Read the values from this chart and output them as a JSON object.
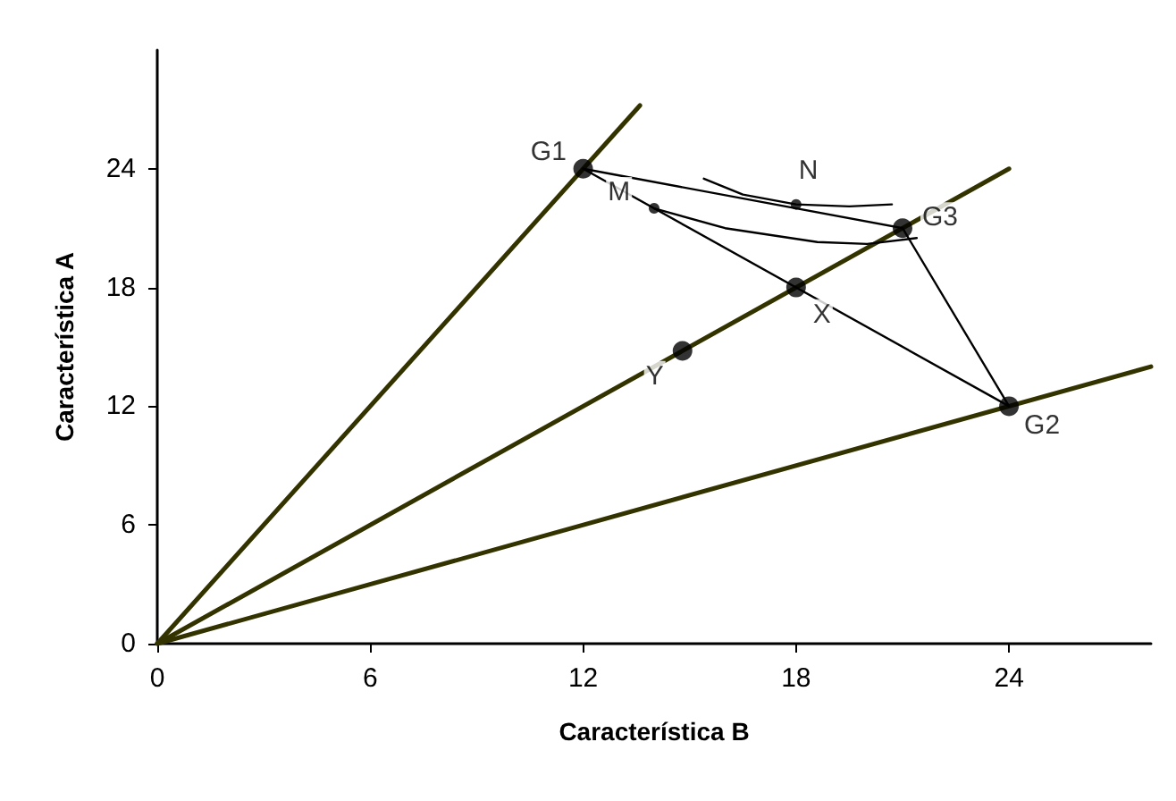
{
  "chart_data": {
    "type": "line",
    "xlabel": "Característica B",
    "ylabel": "Característica A",
    "xlim": [
      0,
      28
    ],
    "ylim": [
      0,
      30
    ],
    "xticks": [
      0,
      6,
      12,
      18,
      24
    ],
    "yticks": [
      0,
      6,
      12,
      18,
      24
    ],
    "grid": false,
    "series": [
      {
        "color": "#333300",
        "x": [
          0,
          13.6
        ],
        "values": [
          0,
          27.2
        ]
      },
      {
        "color": "#333300",
        "x": [
          0,
          24
        ],
        "values": [
          0,
          24
        ]
      },
      {
        "color": "#333300",
        "x": [
          0,
          28
        ],
        "values": [
          0,
          14
        ]
      },
      {
        "color": "#000000",
        "x": [
          12,
          24
        ],
        "values": [
          24,
          12
        ]
      },
      {
        "color": "#000000",
        "x": [
          12,
          21
        ],
        "values": [
          24,
          21
        ]
      },
      {
        "color": "#000000",
        "x": [
          21,
          24
        ],
        "values": [
          21,
          12
        ]
      },
      {
        "color": "#000000",
        "x": [
          15.4,
          16.5,
          18,
          19.5,
          20.7
        ],
        "values": [
          23.5,
          22.7,
          22.2,
          22.1,
          22.2
        ]
      },
      {
        "color": "#000000",
        "x": [
          14,
          16,
          18.6,
          20,
          21.4
        ],
        "values": [
          22,
          21,
          20.3,
          20.2,
          20.5
        ]
      },
      {
        "type": "scatter",
        "color": "#000000",
        "marker": "circle",
        "x": [
          12,
          24,
          21,
          18,
          14.8
        ],
        "values": [
          24,
          12,
          21,
          18,
          14.8
        ]
      },
      {
        "type": "scatter",
        "color": "#000000",
        "marker": "circle",
        "x": [
          14,
          18
        ],
        "values": [
          22,
          22.2
        ]
      }
    ],
    "annotations": [
      {
        "text": "G1",
        "x": 12,
        "y": 24
      },
      {
        "text": "N",
        "x": 18,
        "y": 22.2
      },
      {
        "text": "M",
        "x": 14,
        "y": 22
      },
      {
        "text": "G3",
        "x": 21,
        "y": 21
      },
      {
        "text": "X",
        "x": 18,
        "y": 18
      },
      {
        "text": "Y",
        "x": 14.8,
        "y": 14.8
      },
      {
        "text": "G2",
        "x": 24,
        "y": 12
      }
    ]
  }
}
